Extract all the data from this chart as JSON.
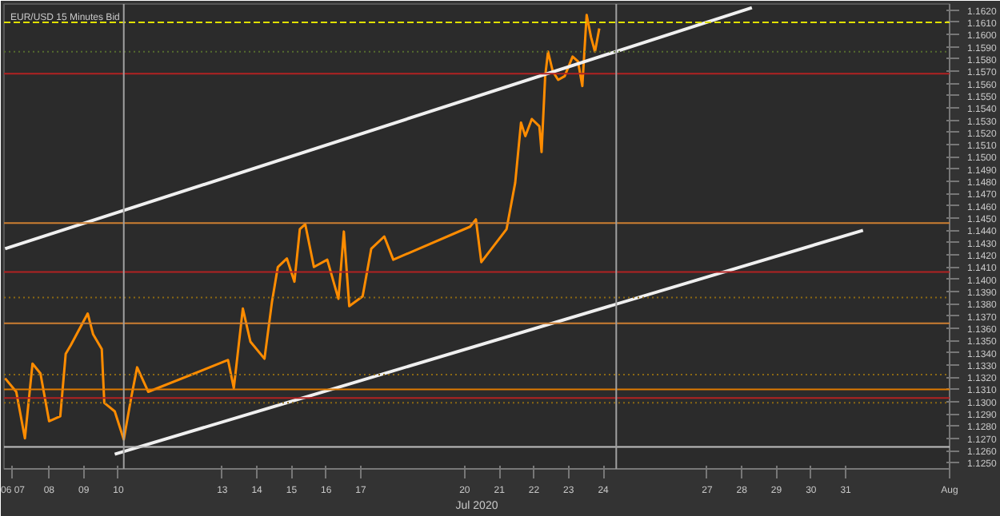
{
  "chart_data": {
    "type": "line",
    "title": "EUR/USD 15 Minutes Bid",
    "xlabel": "Jul 2020",
    "xlim": [
      "2020-07-06T16:45",
      "2020-08-03"
    ],
    "ylim": [
      1.1245,
      1.1625
    ],
    "xticks": [
      {
        "value": "2020-07-06T21:45",
        "label": "06 07"
      },
      {
        "value": "2020-07-08",
        "label": "08"
      },
      {
        "value": "2020-07-09",
        "label": "09"
      },
      {
        "value": "2020-07-10",
        "label": "10"
      },
      {
        "value": "2020-07-13",
        "label": "13"
      },
      {
        "value": "2020-07-14",
        "label": "14"
      },
      {
        "value": "2020-07-15",
        "label": "15"
      },
      {
        "value": "2020-07-16",
        "label": "16"
      },
      {
        "value": "2020-07-17",
        "label": "17"
      },
      {
        "value": "2020-07-20",
        "label": "20"
      },
      {
        "value": "2020-07-21",
        "label": "21"
      },
      {
        "value": "2020-07-22",
        "label": "22"
      },
      {
        "value": "2020-07-23",
        "label": "23"
      },
      {
        "value": "2020-07-24",
        "label": "24"
      },
      {
        "value": "2020-07-27",
        "label": "27"
      },
      {
        "value": "2020-07-28",
        "label": "28"
      },
      {
        "value": "2020-07-29",
        "label": "29"
      },
      {
        "value": "2020-07-30",
        "label": "30"
      },
      {
        "value": "2020-07-31",
        "label": "31"
      },
      {
        "value": "2020-08-03",
        "label": "Aug"
      }
    ],
    "yticks": [
      {
        "value": 1.125,
        "label": "1.1250"
      },
      {
        "value": 1.126,
        "label": "1.1260"
      },
      {
        "value": 1.127,
        "label": "1.1270"
      },
      {
        "value": 1.128,
        "label": "1.1280"
      },
      {
        "value": 1.129,
        "label": "1.1290"
      },
      {
        "value": 1.13,
        "label": "1.1300"
      },
      {
        "value": 1.131,
        "label": "1.1310"
      },
      {
        "value": 1.132,
        "label": "1.1320"
      },
      {
        "value": 1.133,
        "label": "1.1330"
      },
      {
        "value": 1.134,
        "label": "1.1340"
      },
      {
        "value": 1.135,
        "label": "1.1350"
      },
      {
        "value": 1.136,
        "label": "1.1360"
      },
      {
        "value": 1.137,
        "label": "1.1370"
      },
      {
        "value": 1.138,
        "label": "1.1380"
      },
      {
        "value": 1.139,
        "label": "1.1390"
      },
      {
        "value": 1.14,
        "label": "1.1400"
      },
      {
        "value": 1.141,
        "label": "1.1410"
      },
      {
        "value": 1.142,
        "label": "1.1420"
      },
      {
        "value": 1.143,
        "label": "1.1430"
      },
      {
        "value": 1.144,
        "label": "1.1440"
      },
      {
        "value": 1.145,
        "label": "1.1450"
      },
      {
        "value": 1.146,
        "label": "1.1460"
      },
      {
        "value": 1.147,
        "label": "1.1470"
      },
      {
        "value": 1.148,
        "label": "1.1480"
      },
      {
        "value": 1.149,
        "label": "1.1490"
      },
      {
        "value": 1.15,
        "label": "1.1500"
      },
      {
        "value": 1.151,
        "label": "1.1510"
      },
      {
        "value": 1.152,
        "label": "1.1520"
      },
      {
        "value": 1.153,
        "label": "1.1530"
      },
      {
        "value": 1.154,
        "label": "1.1540"
      },
      {
        "value": 1.155,
        "label": "1.1550"
      },
      {
        "value": 1.156,
        "label": "1.1560"
      },
      {
        "value": 1.157,
        "label": "1.1570"
      },
      {
        "value": 1.158,
        "label": "1.1580"
      },
      {
        "value": 1.159,
        "label": "1.1590"
      },
      {
        "value": 1.16,
        "label": "1.1600"
      },
      {
        "value": 1.161,
        "label": "1.1610"
      },
      {
        "value": 1.162,
        "label": "1.1620"
      }
    ],
    "grid": false,
    "line_style": "solid",
    "series": [
      {
        "color": "#ff8c00",
        "x": [
          "2020-07-06T17:30",
          "2020-07-07T01:15",
          "2020-07-07T07:15",
          "2020-07-07T12:30",
          "2020-07-07T18:00",
          "2020-07-08T00:00",
          "2020-07-08T07:45",
          "2020-07-08T11:30",
          "2020-07-08T15:00",
          "2020-07-09T02:45",
          "2020-07-09T06:30",
          "2020-07-09T12:30",
          "2020-07-09T14:15",
          "2020-07-09T21:30",
          "2020-07-10T03:45",
          "2020-07-10T09:00",
          "2020-07-10T13:00",
          "2020-07-10T20:45",
          "2020-07-13T04:00",
          "2020-07-13T08:00",
          "2020-07-13T14:15",
          "2020-07-13T19:30",
          "2020-07-14T05:15",
          "2020-07-14T10:30",
          "2020-07-14T14:30",
          "2020-07-14T20:45",
          "2020-07-15T02:00",
          "2020-07-15T05:45",
          "2020-07-15T09:30",
          "2020-07-15T15:30",
          "2020-07-16T00:45",
          "2020-07-16T08:30",
          "2020-07-16T12:15",
          "2020-07-16T16:00",
          "2020-07-17T01:15",
          "2020-07-17T07:15",
          "2020-07-17T16:15",
          "2020-07-17T22:30",
          "2020-07-20T03:45",
          "2020-07-20T07:45",
          "2020-07-20T11:30",
          "2020-07-21T05:00",
          "2020-07-21T11:00",
          "2020-07-21T15:00",
          "2020-07-21T18:00",
          "2020-07-21T22:30",
          "2020-07-22T03:45",
          "2020-07-22T05:15",
          "2020-07-22T07:45",
          "2020-07-22T09:45",
          "2020-07-22T13:00",
          "2020-07-22T16:45",
          "2020-07-22T21:15",
          "2020-07-23T02:45",
          "2020-07-23T06:30",
          "2020-07-23T09:30",
          "2020-07-23T11:45",
          "2020-07-23T12:30",
          "2020-07-23T15:30",
          "2020-07-23T18:15",
          "2020-07-23T21:15"
        ],
        "values": [
          1.1319,
          1.1308,
          1.127,
          1.1331,
          1.1323,
          1.1284,
          1.1288,
          1.1339,
          1.1346,
          1.1372,
          1.1355,
          1.1343,
          1.1299,
          1.1292,
          1.1269,
          1.1304,
          1.1328,
          1.1308,
          1.1334,
          1.1311,
          1.1376,
          1.1349,
          1.1335,
          1.1382,
          1.141,
          1.1417,
          1.1398,
          1.1441,
          1.1445,
          1.141,
          1.1416,
          1.1384,
          1.1439,
          1.1378,
          1.1386,
          1.1425,
          1.1435,
          1.1416,
          1.1443,
          1.1449,
          1.1414,
          1.1441,
          1.1479,
          1.1528,
          1.1517,
          1.1531,
          1.1525,
          1.1504,
          1.1566,
          1.1586,
          1.157,
          1.1563,
          1.1566,
          1.1582,
          1.1578,
          1.1558,
          1.1602,
          1.1616,
          1.1598,
          1.1586,
          1.1605
        ]
      },
      {
        "color": "#f0f0f0",
        "x": [
          "2020-07-06T17:30",
          "2020-07-28T07:00"
        ],
        "values": [
          1.1425,
          1.1622
        ]
      },
      {
        "color": "#f0f0f0",
        "x": [
          "2020-07-09T21:30",
          "2020-07-31T12:00"
        ],
        "values": [
          1.1257,
          1.144
        ]
      }
    ],
    "ref_lines": [
      {
        "axis": "y",
        "value": 1.161,
        "color": "#e0e000",
        "line_style": "dashed"
      },
      {
        "axis": "y",
        "value": 1.1586,
        "color": "#556b2f",
        "line_style": "dotted"
      },
      {
        "axis": "y",
        "value": 1.1568,
        "color": "#b22222",
        "line_style": "solid"
      },
      {
        "axis": "y",
        "value": 1.1446,
        "color": "#cd7f32",
        "line_style": "solid"
      },
      {
        "axis": "y",
        "value": 1.1406,
        "color": "#b22222",
        "line_style": "solid"
      },
      {
        "axis": "y",
        "value": 1.1385,
        "color": "#8b6914",
        "line_style": "dotted"
      },
      {
        "axis": "y",
        "value": 1.1364,
        "color": "#cd7f32",
        "line_style": "solid"
      },
      {
        "axis": "y",
        "value": 1.1322,
        "color": "#8b6914",
        "line_style": "dotted"
      },
      {
        "axis": "y",
        "value": 1.131,
        "color": "#e07b00",
        "line_style": "solid"
      },
      {
        "axis": "y",
        "value": 1.1303,
        "color": "#b22222",
        "line_style": "solid"
      },
      {
        "axis": "y",
        "value": 1.1299,
        "color": "#8b6914",
        "line_style": "dotted"
      },
      {
        "axis": "y",
        "value": 1.1263,
        "color": "#c0c0c0",
        "line_style": "solid"
      },
      {
        "axis": "x",
        "value": "2020-07-10T03:45",
        "color": "#a0a0a0",
        "line_style": "solid"
      },
      {
        "axis": "x",
        "value": "2020-07-24T09:00",
        "color": "#a0a0a0",
        "line_style": "solid"
      }
    ]
  }
}
